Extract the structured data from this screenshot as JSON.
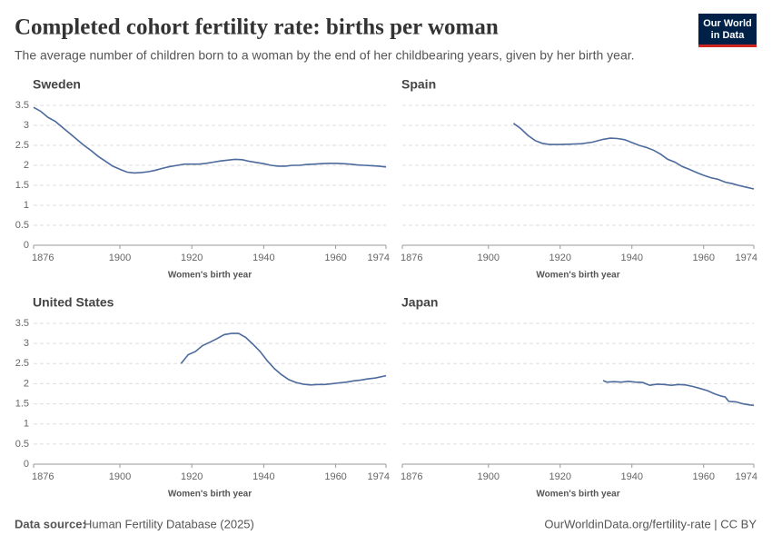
{
  "title": "Completed cohort fertility rate: births per woman",
  "subtitle": "The average number of children born to a woman by the end of her childbearing years, given by her birth year.",
  "logo": [
    "Our World",
    "in Data"
  ],
  "source_label": "Data source:",
  "source": "Human Fertility Database (2025)",
  "url": "OurWorldinData.org/fertility-rate | CC BY",
  "chart_data": [
    {
      "type": "line",
      "title": "Sweden",
      "x_label": "Women's birth year",
      "color": "#4c6a9c",
      "grid": true,
      "ytick_labels": true,
      "xlim": [
        1876,
        1974
      ],
      "xticks": [
        1876,
        1900,
        1920,
        1940,
        1960,
        1974
      ],
      "ylim": [
        0,
        3.5
      ],
      "yticks": [
        0,
        0.5,
        1,
        1.5,
        2,
        2.5,
        3,
        3.5
      ],
      "x": [
        1876,
        1878,
        1880,
        1882,
        1884,
        1886,
        1888,
        1890,
        1892,
        1894,
        1896,
        1898,
        1900,
        1902,
        1904,
        1906,
        1908,
        1910,
        1912,
        1914,
        1916,
        1918,
        1920,
        1922,
        1924,
        1926,
        1928,
        1930,
        1932,
        1934,
        1936,
        1938,
        1940,
        1942,
        1944,
        1946,
        1948,
        1950,
        1952,
        1954,
        1956,
        1958,
        1960,
        1962,
        1964,
        1966,
        1968,
        1970,
        1972,
        1974
      ],
      "values": [
        3.45,
        3.35,
        3.2,
        3.1,
        2.95,
        2.8,
        2.65,
        2.5,
        2.37,
        2.22,
        2.1,
        1.98,
        1.9,
        1.83,
        1.81,
        1.82,
        1.84,
        1.88,
        1.93,
        1.97,
        2.0,
        2.03,
        2.03,
        2.03,
        2.05,
        2.08,
        2.11,
        2.13,
        2.15,
        2.14,
        2.1,
        2.07,
        2.04,
        2.0,
        1.98,
        1.98,
        2.0,
        2.0,
        2.02,
        2.03,
        2.04,
        2.05,
        2.05,
        2.04,
        2.03,
        2.01,
        2.0,
        1.99,
        1.98,
        1.96
      ]
    },
    {
      "type": "line",
      "title": "Spain",
      "x_label": "Women's birth year",
      "color": "#4c6a9c",
      "grid": true,
      "ytick_labels": false,
      "xlim": [
        1876,
        1974
      ],
      "xticks": [
        1876,
        1900,
        1920,
        1940,
        1960,
        1974
      ],
      "ylim": [
        0,
        3.5
      ],
      "yticks": [
        0,
        0.5,
        1,
        1.5,
        2,
        2.5,
        3,
        3.5
      ],
      "x": [
        1907,
        1909,
        1911,
        1913,
        1915,
        1917,
        1920,
        1923,
        1926,
        1929,
        1932,
        1934,
        1936,
        1938,
        1940,
        1942,
        1944,
        1946,
        1948,
        1950,
        1952,
        1954,
        1956,
        1958,
        1960,
        1962,
        1964,
        1966,
        1968,
        1970,
        1972,
        1974
      ],
      "values": [
        3.05,
        2.92,
        2.75,
        2.62,
        2.55,
        2.52,
        2.52,
        2.53,
        2.54,
        2.58,
        2.65,
        2.68,
        2.67,
        2.64,
        2.57,
        2.5,
        2.45,
        2.38,
        2.28,
        2.15,
        2.08,
        1.97,
        1.9,
        1.82,
        1.75,
        1.69,
        1.65,
        1.58,
        1.54,
        1.49,
        1.45,
        1.41
      ]
    },
    {
      "type": "line",
      "title": "United States",
      "x_label": "Women's birth year",
      "color": "#4c6a9c",
      "grid": true,
      "ytick_labels": true,
      "xlim": [
        1876,
        1974
      ],
      "xticks": [
        1876,
        1900,
        1920,
        1940,
        1960,
        1974
      ],
      "ylim": [
        0,
        3.5
      ],
      "yticks": [
        0,
        0.5,
        1,
        1.5,
        2,
        2.5,
        3,
        3.5
      ],
      "x": [
        1917,
        1919,
        1921,
        1923,
        1925,
        1927,
        1929,
        1931,
        1933,
        1935,
        1937,
        1939,
        1941,
        1943,
        1945,
        1947,
        1949,
        1951,
        1953,
        1955,
        1957,
        1959,
        1961,
        1963,
        1965,
        1967,
        1969,
        1971,
        1974
      ],
      "values": [
        2.5,
        2.72,
        2.8,
        2.95,
        3.03,
        3.12,
        3.22,
        3.25,
        3.25,
        3.15,
        2.98,
        2.8,
        2.57,
        2.37,
        2.22,
        2.1,
        2.03,
        1.99,
        1.97,
        1.98,
        1.98,
        2.0,
        2.02,
        2.04,
        2.07,
        2.09,
        2.12,
        2.14,
        2.2
      ]
    },
    {
      "type": "line",
      "title": "Japan",
      "x_label": "Women's birth year",
      "color": "#4c6a9c",
      "grid": true,
      "ytick_labels": false,
      "xlim": [
        1876,
        1974
      ],
      "xticks": [
        1876,
        1900,
        1920,
        1940,
        1960,
        1974
      ],
      "ylim": [
        0,
        3.5
      ],
      "yticks": [
        0,
        0.5,
        1,
        1.5,
        2,
        2.5,
        3,
        3.5
      ],
      "x": [
        1932,
        1933,
        1935,
        1937,
        1939,
        1941,
        1943,
        1945,
        1947,
        1949,
        1951,
        1953,
        1955,
        1957,
        1959,
        1961,
        1963,
        1965,
        1966,
        1967,
        1969,
        1971,
        1973,
        1974
      ],
      "values": [
        2.08,
        2.04,
        2.05,
        2.04,
        2.06,
        2.04,
        2.03,
        1.96,
        1.99,
        1.98,
        1.96,
        1.98,
        1.97,
        1.93,
        1.88,
        1.83,
        1.75,
        1.69,
        1.67,
        1.56,
        1.55,
        1.5,
        1.47,
        1.46
      ]
    }
  ]
}
